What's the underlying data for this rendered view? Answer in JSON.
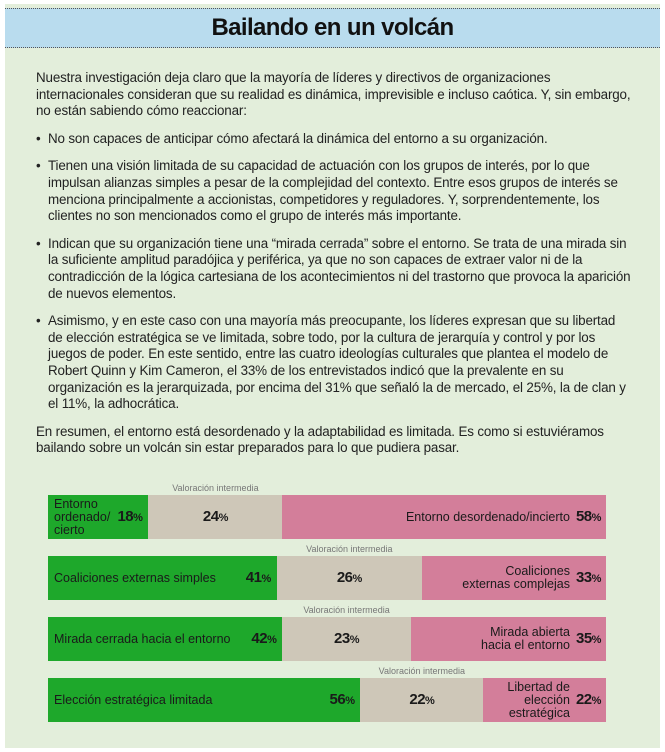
{
  "title": "Bailando en un volcán",
  "intro": "Nuestra investigación deja claro que la mayoría de líderes y directivos de organizaciones internacionales consideran que su realidad es dinámica, imprevisible e incluso caótica. Y, sin embargo, no están sabiendo cómo reaccionar:",
  "bullets": [
    "No son capaces de anticipar cómo afectará la dinámica del entorno a su organización.",
    "Tienen una visión limitada de su capacidad de actuación con los grupos de interés, por lo que impulsan alianzas simples a pesar de la complejidad del contexto. Entre esos grupos de interés se menciona principalmente a accionistas, competidores y reguladores. Y, sorprendentemente, los clientes no son mencionados como el grupo de interés más importante.",
    "Indican que su organización tiene una “mirada cerrada” sobre el entorno. Se trata de una mirada sin la suficiente amplitud paradójica y periférica, ya que no son capaces de extraer valor ni de la contradicción de la lógica cartesiana de los acontecimientos ni del trastorno que provoca la aparición de nuevos elementos.",
    "Asimismo, y en este caso con una mayoría más preocupante, los líderes expresan que su libertad de elección estratégica se ve limitada, sobre todo, por la cultura de jerarquía y control y por los juegos de poder. En este sentido, entre las cuatro ideologías culturales que plantea el modelo de Robert Quinn y Kim Cameron, el 33% de los entrevistados indicó que la prevalente en su organización es la jerarquizada, por encima del 31% que señaló la de mercado, el 25%, la de clan y el 11%, la adhocrática."
  ],
  "summary": "En resumen, el entorno está desordenado y la adaptabilidad es limitada. Es como si estuviéramos bailando sobre un volcán sin estar preparados para lo que pudiera pasar.",
  "colors": {
    "left": "#1ea82b",
    "middle": "#cec7b8",
    "right": "#d37e9a"
  },
  "chart_data": {
    "type": "bar",
    "stacked": true,
    "orientation": "horizontal",
    "middle_label": "Valoración intermedia",
    "rows": [
      {
        "left_label": "Entorno ordenado/ cierto",
        "left": 18,
        "middle": 24,
        "right_label": "Entorno desordenado/incierto",
        "right": 58
      },
      {
        "left_label": "Coaliciones externas simples",
        "left": 41,
        "middle": 26,
        "right_label": "Coaliciones externas complejas",
        "right": 33
      },
      {
        "left_label": "Mirada cerrada hacia el entorno",
        "left": 42,
        "middle": 23,
        "right_label": "Mirada abierta hacia el entorno",
        "right": 35
      },
      {
        "left_label": "Elección estratégica limitada",
        "left": 56,
        "middle": 22,
        "right_label": "Libertad de elección estratégica",
        "right": 22
      }
    ]
  }
}
